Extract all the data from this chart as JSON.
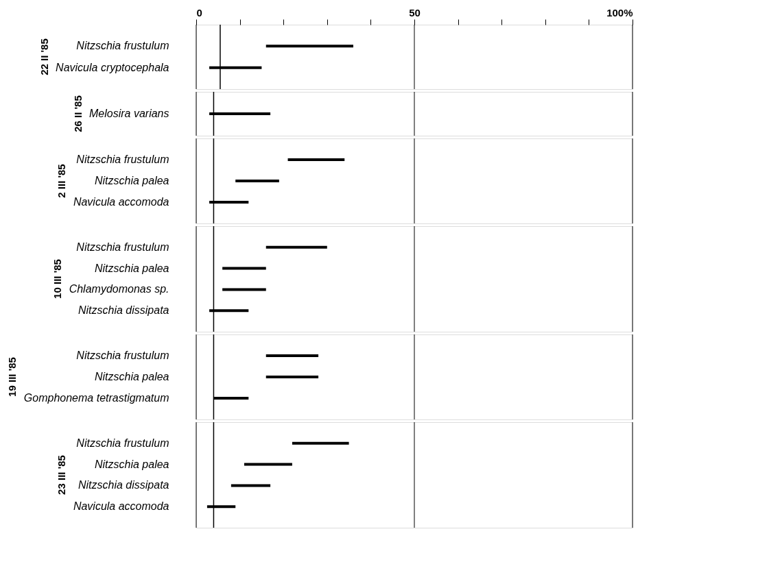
{
  "chart_data": [
    {
      "type": "bar",
      "orientation": "horizontal",
      "title": "22 II '85",
      "categories": [
        "Nitzschia frustulum",
        "Navicula cryptocephala"
      ],
      "base": [
        16,
        3
      ],
      "values": [
        20,
        12
      ],
      "color": "#000000",
      "xlim": [
        0,
        100
      ],
      "xticks": [
        0,
        {
          "value": 10,
          "label": null
        },
        {
          "value": 20,
          "label": null
        },
        {
          "value": 30,
          "label": null
        },
        {
          "value": 40,
          "label": null
        },
        50,
        {
          "value": 60,
          "label": null
        },
        {
          "value": 70,
          "label": null
        },
        {
          "value": 80,
          "label": null
        },
        {
          "value": 90,
          "label": null
        },
        {
          "value": 100,
          "label": "100%"
        }
      ],
      "grid": "x",
      "ref_lines": [
        {
          "axis": "x",
          "value": 5.5,
          "label": null
        }
      ]
    },
    {
      "type": "bar",
      "orientation": "horizontal",
      "title": "26 II '85",
      "categories": [
        "Melosira varians"
      ],
      "base": [
        3
      ],
      "values": [
        14
      ],
      "color": "#000000",
      "xlim": [
        0,
        100
      ],
      "xticks": [
        0,
        50,
        100
      ],
      "grid": "x",
      "tick_labels": "y",
      "ref_lines": [
        {
          "axis": "x",
          "value": 4,
          "label": null
        }
      ]
    },
    {
      "type": "bar",
      "orientation": "horizontal",
      "title": "2 III '85",
      "categories": [
        "Nitzschia frustulum",
        "Nitzschia palea",
        "Navicula accomoda"
      ],
      "base": [
        21,
        9,
        3
      ],
      "values": [
        13,
        10,
        9
      ],
      "color": "#000000",
      "xlim": [
        0,
        100
      ],
      "xticks": [
        0,
        50,
        100
      ],
      "grid": "x",
      "tick_labels": "y",
      "ref_lines": [
        {
          "axis": "x",
          "value": 4,
          "label": null
        }
      ]
    },
    {
      "type": "bar",
      "orientation": "horizontal",
      "title": "10 III '85",
      "categories": [
        "Nitzschia frustulum",
        "Nitzschia palea",
        "Chlamydomonas sp.",
        "Nitzschia dissipata"
      ],
      "base": [
        16,
        6,
        6,
        3
      ],
      "values": [
        14,
        10,
        10,
        9
      ],
      "color": "#000000",
      "xlim": [
        0,
        100
      ],
      "xticks": [
        0,
        50,
        100
      ],
      "grid": "x",
      "tick_labels": "y",
      "ref_lines": [
        {
          "axis": "x",
          "value": 4,
          "label": null
        }
      ]
    },
    {
      "type": "bar",
      "orientation": "horizontal",
      "title": "19 III '85",
      "categories": [
        "Nitzschia frustulum",
        "Nitzschia palea",
        "Gomphonema tetrastigmatum"
      ],
      "base": [
        16,
        16,
        4
      ],
      "values": [
        12,
        12,
        8
      ],
      "color": "#000000",
      "xlim": [
        0,
        100
      ],
      "xticks": [
        0,
        50,
        100
      ],
      "grid": "x",
      "tick_labels": "y",
      "ref_lines": [
        {
          "axis": "x",
          "value": 4,
          "label": null
        }
      ]
    },
    {
      "type": "bar",
      "orientation": "horizontal",
      "title": "23 III '85",
      "categories": [
        "Nitzschia frustulum",
        "Nitzschia palea",
        "Nitzschia dissipata",
        "Navicula accomoda"
      ],
      "base": [
        22,
        11,
        8,
        2.5
      ],
      "values": [
        13,
        11,
        9,
        6.5
      ],
      "color": "#000000",
      "xlim": [
        0,
        100
      ],
      "xticks": [
        0,
        50,
        100
      ],
      "grid": "x",
      "tick_labels": "y",
      "ref_lines": [
        {
          "axis": "x",
          "value": 4,
          "label": null
        }
      ]
    }
  ]
}
